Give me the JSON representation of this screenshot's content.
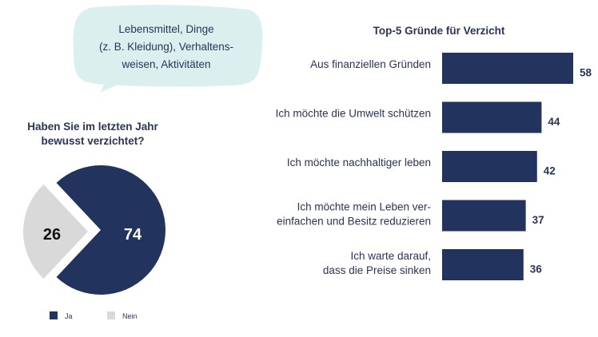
{
  "colors": {
    "navy": "#22335e",
    "gray": "#d9d9d9",
    "bubble": "#dbf0ee",
    "text": "#2b3357"
  },
  "bubble": {
    "lines": [
      "Lebensmittel, Dinge",
      "(z. B. Kleidung), Verhaltens-",
      "weisen, Aktivitäten"
    ]
  },
  "chart_data": [
    {
      "type": "pie",
      "title": [
        "Haben Sie im letzten Jahr",
        "bewusst verzichtet?"
      ],
      "slices": [
        {
          "label": "Ja",
          "value": 74,
          "color": "#22335e"
        },
        {
          "label": "Nein",
          "value": 26,
          "color": "#d9d9d9",
          "exploded": true
        }
      ],
      "legend": "bottom"
    },
    {
      "type": "bar",
      "orientation": "horizontal",
      "title": "Top-5 Gründe für Verzicht",
      "categories": [
        [
          "Aus finanziellen Gründen"
        ],
        [
          "Ich möchte die Umwelt schützen"
        ],
        [
          "Ich möchte nachhaltiger leben"
        ],
        [
          "Ich möchte mein Leben ver-",
          "einfachen und Besitz reduzieren"
        ],
        [
          "Ich warte darauf,",
          "dass die Preise sinken"
        ]
      ],
      "values": [
        58,
        44,
        42,
        37,
        36
      ],
      "color": "#22335e",
      "grid": false
    }
  ]
}
